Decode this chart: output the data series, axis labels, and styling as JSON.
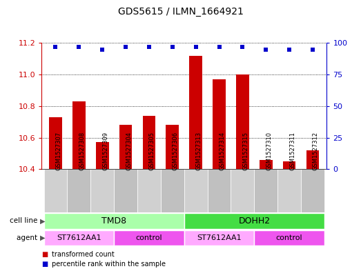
{
  "title": "GDS5615 / ILMN_1664921",
  "samples": [
    "GSM1527307",
    "GSM1527308",
    "GSM1527309",
    "GSM1527304",
    "GSM1527305",
    "GSM1527306",
    "GSM1527313",
    "GSM1527314",
    "GSM1527315",
    "GSM1527310",
    "GSM1527311",
    "GSM1527312"
  ],
  "bar_values": [
    10.73,
    10.83,
    10.57,
    10.68,
    10.74,
    10.68,
    11.12,
    10.97,
    11.0,
    10.46,
    10.45,
    10.52
  ],
  "percentile_values": [
    97,
    97,
    95,
    97,
    97,
    97,
    97,
    97,
    97,
    95,
    95,
    95
  ],
  "bar_color": "#cc0000",
  "dot_color": "#0000cc",
  "ylim_left": [
    10.4,
    11.2
  ],
  "ylim_right": [
    0,
    100
  ],
  "yticks_left": [
    10.4,
    10.6,
    10.8,
    11.0,
    11.2
  ],
  "yticks_right": [
    0,
    25,
    50,
    75,
    100
  ],
  "cell_line_groups": [
    {
      "label": "TMD8",
      "start": 0,
      "end": 6,
      "color": "#aaffaa"
    },
    {
      "label": "DOHH2",
      "start": 6,
      "end": 12,
      "color": "#44dd44"
    }
  ],
  "agent_groups": [
    {
      "label": "ST7612AA1",
      "start": 0,
      "end": 3,
      "color": "#ffaaff"
    },
    {
      "label": "control",
      "start": 3,
      "end": 6,
      "color": "#ee55ee"
    },
    {
      "label": "ST7612AA1",
      "start": 6,
      "end": 9,
      "color": "#ffaaff"
    },
    {
      "label": "control",
      "start": 9,
      "end": 12,
      "color": "#ee55ee"
    }
  ],
  "legend_bar_label": "transformed count",
  "legend_dot_label": "percentile rank within the sample",
  "cell_line_label": "cell line",
  "agent_label": "agent",
  "bar_width": 0.55,
  "background_color": "#ffffff",
  "axes_bg_color": "#ffffff",
  "tick_label_color_left": "#cc0000",
  "tick_label_color_right": "#0000cc",
  "sample_bg_color": "#cccccc",
  "title_fontsize": 10
}
